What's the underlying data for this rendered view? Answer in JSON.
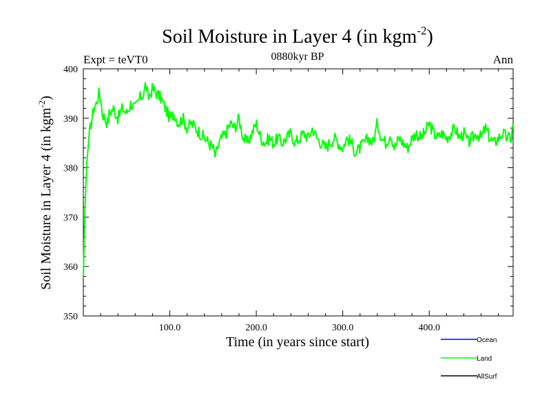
{
  "chart_data": {
    "type": "line",
    "title": "Soil Moisture in Layer 4 (in kgm",
    "title_superscript": "-2",
    "title_close": ")",
    "subtitle": "0880kyr BP",
    "left_label": "Expt = teVT0",
    "right_label": "Ann",
    "xlabel": "Time (in years since start)",
    "ylabel": "Soil Moisture in Layer 4 (in kgm",
    "ylabel_superscript": "-2",
    "ylabel_close": ")",
    "xlim": [
      0,
      497
    ],
    "ylim": [
      350,
      400
    ],
    "xticks": [
      100,
      200,
      300,
      400
    ],
    "xtick_labels": [
      "100.0",
      "200.0",
      "300.0",
      "400.0"
    ],
    "yticks": [
      350,
      360,
      370,
      380,
      390,
      400
    ],
    "ytick_labels": [
      "350",
      "360",
      "370",
      "380",
      "390",
      "400"
    ],
    "legend": [
      {
        "name": "Ocean",
        "color": "#0000ff"
      },
      {
        "name": "Land",
        "color": "#00ff00"
      },
      {
        "name": "AllSurf",
        "color": "#000000"
      }
    ],
    "legend_position": "bottom-right",
    "series": [
      {
        "name": "Land",
        "color": "#00ff00",
        "anchors_x": [
          0,
          1,
          2,
          3,
          4,
          6,
          8,
          10,
          12,
          15,
          18,
          20,
          22,
          25,
          28,
          30,
          35,
          40,
          45,
          50,
          55,
          60,
          65,
          70,
          72,
          75,
          80,
          85,
          90,
          95,
          100,
          105,
          110,
          115,
          120,
          125,
          130,
          135,
          140,
          145,
          150,
          153,
          155,
          160,
          165,
          170,
          175,
          180,
          185,
          190,
          195,
          200,
          205,
          210,
          215,
          220,
          225,
          230,
          235,
          240,
          245,
          250,
          255,
          260,
          265,
          270,
          275,
          280,
          285,
          290,
          295,
          300,
          305,
          310,
          315,
          320,
          325,
          330,
          335,
          340,
          345,
          350,
          355,
          360,
          365,
          370,
          375,
          380,
          385,
          390,
          395,
          400,
          405,
          410,
          415,
          420,
          425,
          430,
          435,
          440,
          445,
          450,
          455,
          460,
          465,
          470,
          475,
          480,
          485,
          490,
          495,
          497
        ],
        "anchors_y": [
          358,
          366,
          372,
          377,
          381,
          385,
          388,
          390,
          392,
          393,
          395,
          394,
          391,
          390,
          389,
          391,
          392,
          390,
          392,
          391,
          393,
          392,
          394,
          395,
          397,
          394,
          396,
          395,
          394,
          392,
          390,
          391,
          389,
          390,
          388,
          389,
          388,
          387,
          386,
          385,
          384,
          382,
          384,
          386,
          387,
          389,
          388,
          390,
          386,
          385,
          387,
          389,
          386,
          385,
          386,
          385,
          386,
          385,
          386,
          387,
          385,
          386,
          387,
          386,
          388,
          386,
          385,
          384,
          385,
          386,
          385,
          384,
          386,
          385,
          383,
          384,
          385,
          386,
          385,
          389,
          386,
          385,
          387,
          384,
          386,
          385,
          384,
          386,
          387,
          386,
          387,
          389,
          387,
          386,
          387,
          386,
          387,
          388,
          386,
          387,
          385,
          386,
          387,
          386,
          388,
          386,
          385,
          386,
          387,
          386,
          386,
          389
        ],
        "noise": 1.3,
        "points": 500
      }
    ]
  }
}
